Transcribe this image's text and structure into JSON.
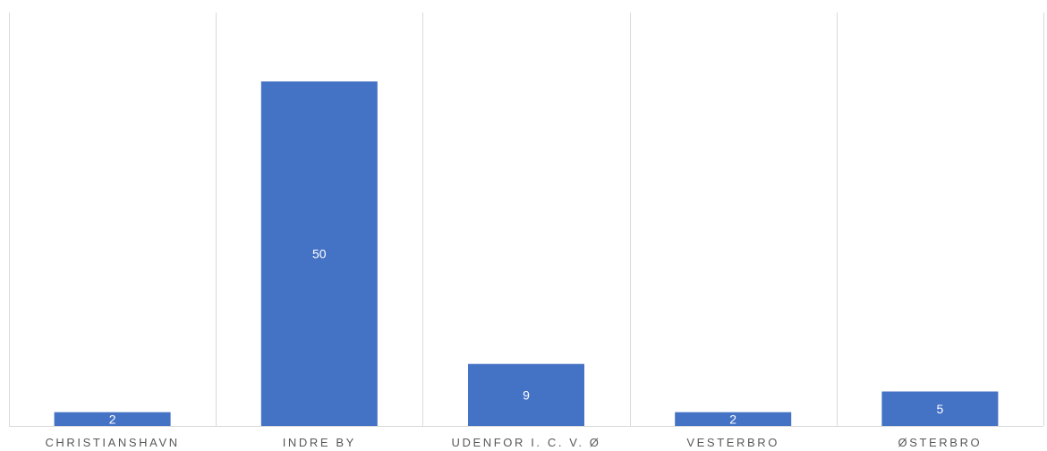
{
  "chart_data": {
    "type": "bar",
    "categories": [
      "CHRISTIANSHAVN",
      "INDRE BY",
      "UDENFOR I. C. V. Ø",
      "VESTERBRO",
      "ØSTERBRO"
    ],
    "values": [
      2,
      50,
      9,
      2,
      5
    ],
    "title": "",
    "xlabel": "",
    "ylabel": "",
    "ylim": [
      0,
      60
    ],
    "grid": "vertical category separators",
    "legend": "none",
    "bar_color": "#4472C4",
    "gridline_color": "#d9d9d9",
    "label_color": "#595959",
    "data_label_color": "#ffffff"
  }
}
